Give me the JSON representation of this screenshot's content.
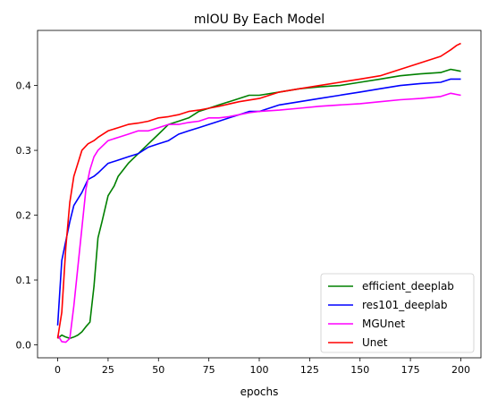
{
  "chart_data": {
    "type": "line",
    "title": "mIOU By Each Model",
    "xlabel": "epochs",
    "ylabel": "",
    "xlim": [
      -10,
      210
    ],
    "ylim": [
      -0.02,
      0.485
    ],
    "xticks": [
      0,
      25,
      50,
      75,
      100,
      125,
      150,
      175,
      200
    ],
    "yticks": [
      0.0,
      0.1,
      0.2,
      0.3,
      0.4
    ],
    "xtick_labels": [
      "0",
      "25",
      "50",
      "75",
      "100",
      "125",
      "150",
      "175",
      "200"
    ],
    "ytick_labels": [
      "0.0",
      "0.1",
      "0.2",
      "0.3",
      "0.4"
    ],
    "grid": false,
    "legend_position": "lower-right",
    "series": [
      {
        "name": "efficient_deeplab",
        "color": "#008000",
        "x": [
          0,
          2,
          4,
          6,
          8,
          10,
          12,
          14,
          16,
          18,
          20,
          22,
          25,
          28,
          30,
          35,
          40,
          45,
          50,
          55,
          60,
          65,
          70,
          75,
          80,
          85,
          90,
          95,
          100,
          110,
          120,
          130,
          140,
          150,
          160,
          170,
          180,
          190,
          195,
          200
        ],
        "values": [
          0.01,
          0.015,
          0.012,
          0.01,
          0.012,
          0.015,
          0.02,
          0.028,
          0.035,
          0.09,
          0.165,
          0.19,
          0.23,
          0.245,
          0.26,
          0.28,
          0.295,
          0.31,
          0.325,
          0.34,
          0.345,
          0.35,
          0.36,
          0.365,
          0.37,
          0.375,
          0.38,
          0.385,
          0.385,
          0.39,
          0.395,
          0.398,
          0.4,
          0.405,
          0.41,
          0.415,
          0.418,
          0.42,
          0.425,
          0.422
        ]
      },
      {
        "name": "res101_deeplab",
        "color": "#0000ff",
        "x": [
          0,
          2,
          4,
          6,
          8,
          10,
          12,
          15,
          18,
          20,
          25,
          30,
          35,
          40,
          45,
          50,
          55,
          60,
          65,
          70,
          75,
          80,
          85,
          90,
          95,
          100,
          110,
          120,
          130,
          140,
          150,
          160,
          170,
          180,
          190,
          195,
          200
        ],
        "values": [
          0.03,
          0.13,
          0.16,
          0.19,
          0.215,
          0.225,
          0.235,
          0.255,
          0.26,
          0.265,
          0.28,
          0.285,
          0.29,
          0.295,
          0.305,
          0.31,
          0.315,
          0.325,
          0.33,
          0.335,
          0.34,
          0.345,
          0.35,
          0.355,
          0.36,
          0.36,
          0.37,
          0.375,
          0.38,
          0.385,
          0.39,
          0.395,
          0.4,
          0.403,
          0.405,
          0.41,
          0.41
        ]
      },
      {
        "name": "MGUnet",
        "color": "#ff00ff",
        "x": [
          0,
          2,
          4,
          6,
          8,
          10,
          12,
          14,
          16,
          18,
          20,
          25,
          30,
          35,
          40,
          45,
          50,
          55,
          60,
          65,
          70,
          75,
          80,
          85,
          90,
          95,
          100,
          110,
          120,
          130,
          140,
          150,
          160,
          170,
          180,
          190,
          195,
          200
        ],
        "values": [
          0.015,
          0.005,
          0.004,
          0.01,
          0.06,
          0.12,
          0.18,
          0.24,
          0.27,
          0.29,
          0.3,
          0.315,
          0.32,
          0.325,
          0.33,
          0.33,
          0.335,
          0.34,
          0.34,
          0.343,
          0.345,
          0.35,
          0.35,
          0.352,
          0.355,
          0.358,
          0.36,
          0.362,
          0.365,
          0.368,
          0.37,
          0.372,
          0.375,
          0.378,
          0.38,
          0.383,
          0.388,
          0.385
        ]
      },
      {
        "name": "Unet",
        "color": "#ff0000",
        "x": [
          0,
          2,
          4,
          6,
          8,
          10,
          12,
          15,
          18,
          20,
          25,
          30,
          35,
          40,
          45,
          50,
          55,
          60,
          65,
          70,
          75,
          80,
          90,
          100,
          110,
          120,
          130,
          140,
          150,
          160,
          170,
          180,
          190,
          195,
          198,
          200
        ],
        "values": [
          0.01,
          0.05,
          0.15,
          0.22,
          0.26,
          0.28,
          0.3,
          0.31,
          0.315,
          0.32,
          0.33,
          0.335,
          0.34,
          0.342,
          0.345,
          0.35,
          0.352,
          0.355,
          0.36,
          0.362,
          0.365,
          0.368,
          0.375,
          0.38,
          0.39,
          0.395,
          0.4,
          0.405,
          0.41,
          0.415,
          0.425,
          0.435,
          0.445,
          0.455,
          0.462,
          0.465
        ]
      }
    ]
  }
}
